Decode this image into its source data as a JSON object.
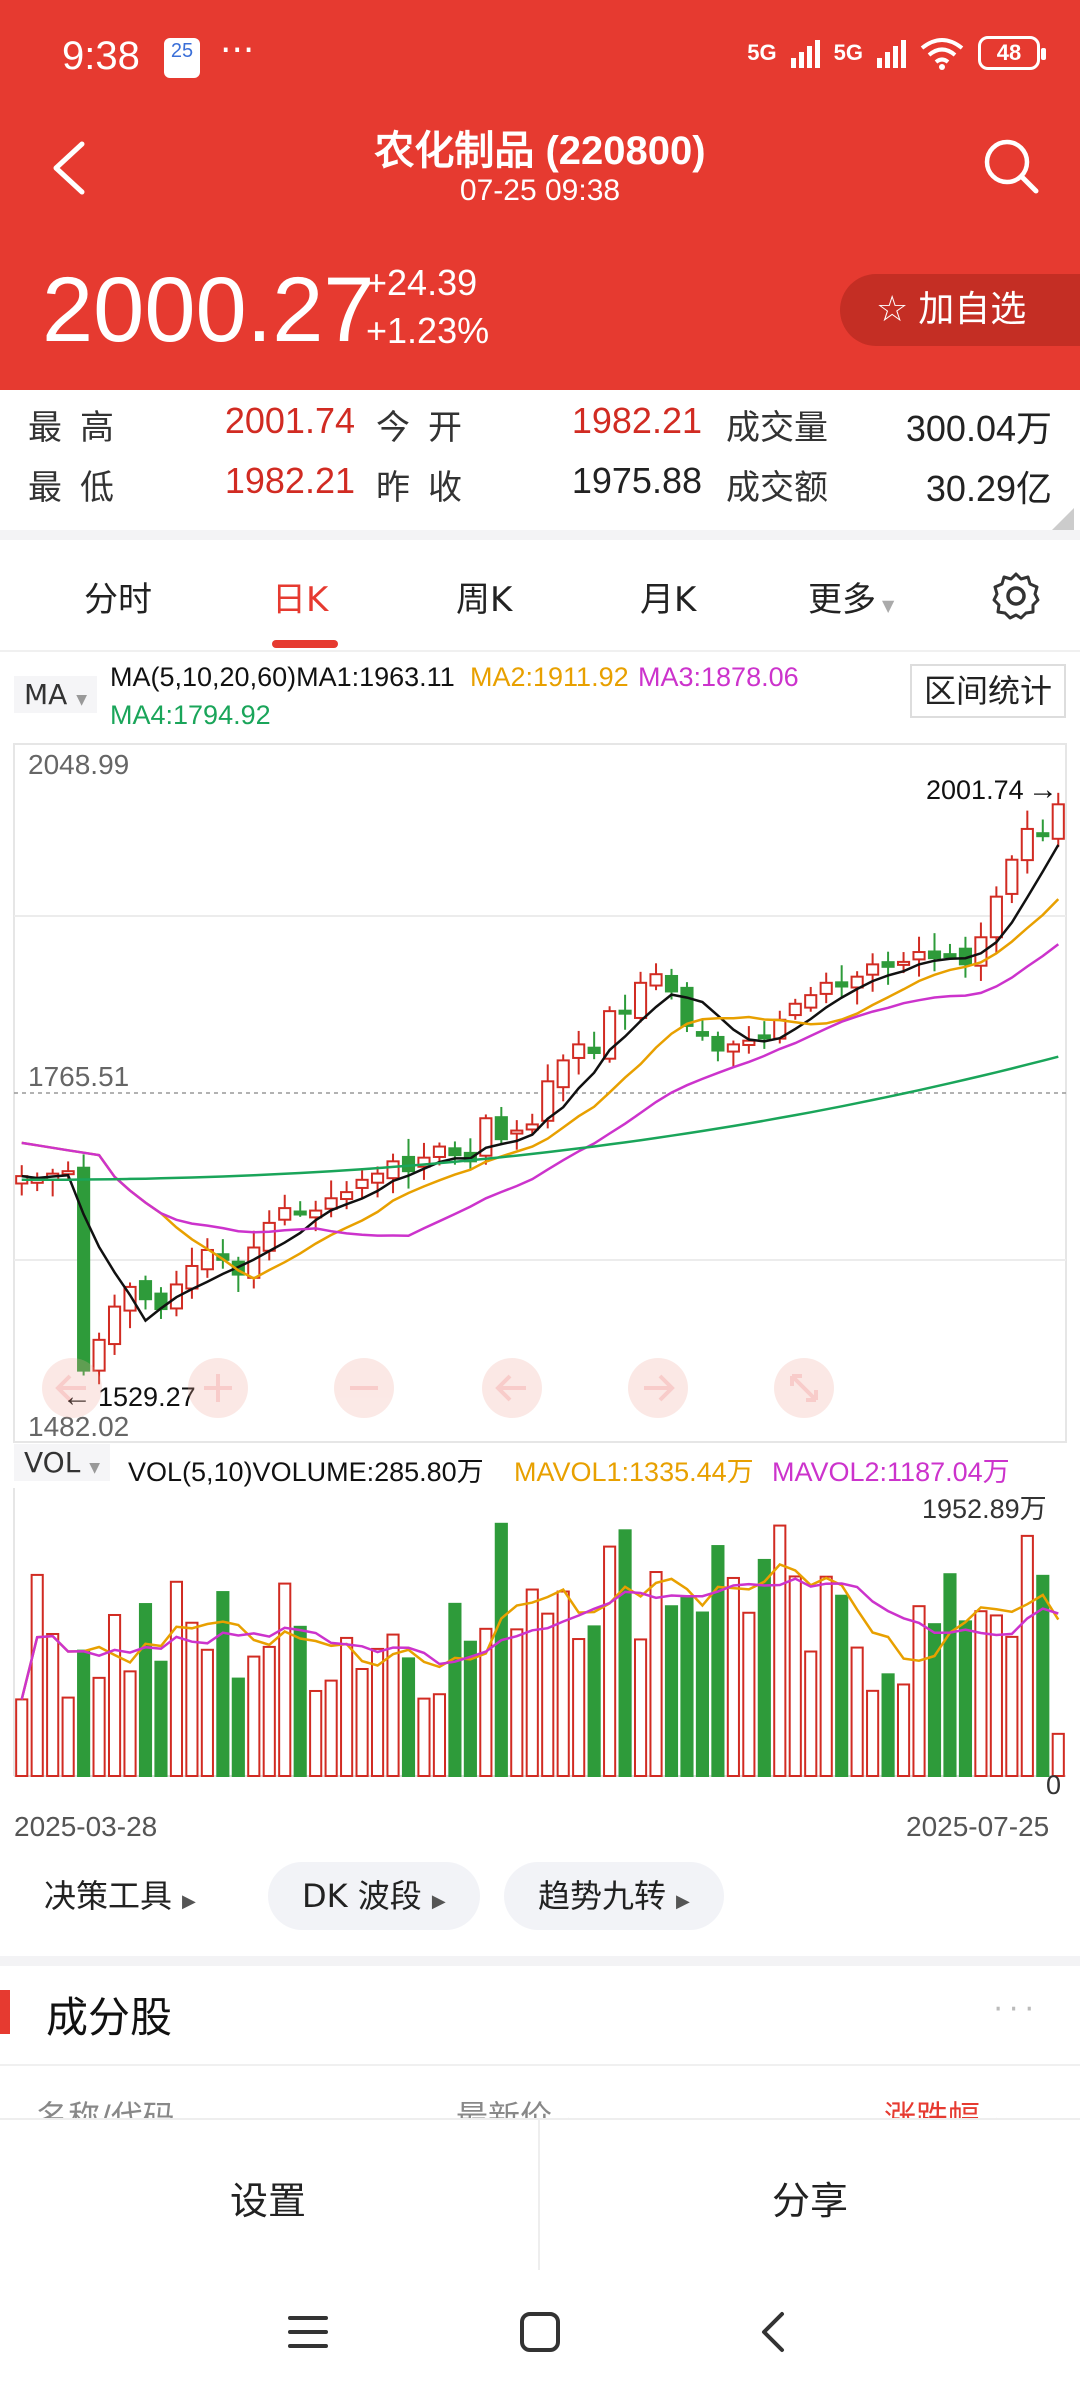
{
  "status_bar": {
    "time": "9:38",
    "calendar_badge": "25",
    "dots": "···",
    "net1": "5G",
    "net2": "5G",
    "battery": "48"
  },
  "header": {
    "title": "农化制品 (220800)",
    "subtitle": "07-25 09:38"
  },
  "quote": {
    "price": "2000.27",
    "change": "+24.39",
    "change_pct": "+1.23%",
    "watch_label": "加自选"
  },
  "stats": {
    "high_label": "最高",
    "high": "2001.74",
    "open_label": "今开",
    "open": "1982.21",
    "volume_label": "成交量",
    "volume": "300.04万",
    "low_label": "最低",
    "low": "1982.21",
    "prev_close_label": "昨收",
    "prev_close": "1975.88",
    "amount_label": "成交额",
    "amount": "30.29亿"
  },
  "tabs": [
    "分时",
    "日K",
    "周K",
    "月K",
    "更多"
  ],
  "active_tab": "日K",
  "ma_panel": {
    "selector": "MA",
    "ma_label": "MA(5,10,20,60)MA1:1963.11",
    "ma2": "MA2:1911.92",
    "ma3": "MA3:1878.06",
    "ma4": "MA4:1794.92",
    "range_stats_button": "区间统计",
    "ymax_label": "2048.99",
    "ymid_label": "1765.51",
    "ymin_label": "1482.02",
    "high_marker": "2001.74",
    "low_marker": "1529.27"
  },
  "vol_panel": {
    "selector": "VOL",
    "vol_label": "VOL(5,10)VOLUME:285.80万",
    "mavol1": "MAVOL1:1335.44万",
    "mavol2": "MAVOL2:1187.04万",
    "max_label": "1952.89万",
    "zero_label": "0"
  },
  "date_start": "2025-03-28",
  "date_end": "2025-07-25",
  "tools": [
    "决策工具",
    "DK 波段",
    "趋势九转"
  ],
  "section": {
    "title": "成分股",
    "col_name": "名称/代码",
    "col_price": "最新价",
    "col_change": "涨跌幅"
  },
  "bottom_bar": {
    "settings": "设置",
    "share": "分享"
  },
  "colors": {
    "brand": "#e63a30",
    "up": "#d12b22",
    "down": "#2e9b3a",
    "ma1": "#111111",
    "ma2": "#e8a000",
    "ma3": "#cc33cc",
    "ma4": "#1aa55a"
  },
  "chart_data": {
    "type": "candlestick",
    "x_start": "2025-03-28",
    "x_end": "2025-07-25",
    "ylim": [
      1482.02,
      2048.99
    ],
    "closes": [
      1698,
      1695,
      1700,
      1702,
      1540,
      1565,
      1592,
      1608,
      1598,
      1590,
      1610,
      1625,
      1638,
      1630,
      1618,
      1640,
      1660,
      1672,
      1669,
      1670,
      1680,
      1685,
      1695,
      1700,
      1710,
      1702,
      1713,
      1722,
      1715,
      1710,
      1745,
      1728,
      1735,
      1740,
      1775,
      1792,
      1805,
      1798,
      1832,
      1830,
      1855,
      1862,
      1848,
      1820,
      1812,
      1800,
      1805,
      1808,
      1812,
      1825,
      1838,
      1845,
      1855,
      1852,
      1860,
      1870,
      1868,
      1872,
      1880,
      1875,
      1878,
      1870,
      1892,
      1925,
      1955,
      1980,
      1975,
      2000
    ],
    "volume_max_wan": 1952.89,
    "volume_last_wan": 285.8
  }
}
